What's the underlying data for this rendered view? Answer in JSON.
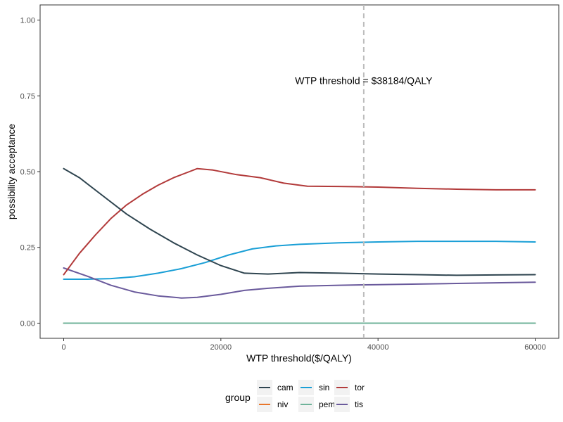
{
  "chart_data": {
    "type": "line",
    "title": "",
    "xlabel": "WTP threshold($/QALY)",
    "ylabel": "possibility acceptance",
    "xlim": [
      -3000,
      63000
    ],
    "ylim": [
      -0.05,
      1.05
    ],
    "x_ticks": [
      0,
      20000,
      40000,
      60000
    ],
    "x_tick_labels": [
      "0",
      "20000",
      "40000",
      "60000"
    ],
    "y_ticks": [
      0,
      0.25,
      0.5,
      0.75,
      1
    ],
    "y_tick_labels": [
      "0.00",
      "0.25",
      "0.50",
      "0.75",
      "1.00"
    ],
    "grid": false,
    "legend": {
      "title": "group",
      "position": "bottom"
    },
    "vline": {
      "x": 38184,
      "style": "dashed",
      "color": "#bdbdbd"
    },
    "annotation": {
      "text": "WTP threshold = $38184/QALY",
      "x": 38184,
      "y": 0.8
    },
    "series": [
      {
        "name": "cam",
        "color": "#2f4550",
        "x": [
          0,
          2000,
          5000,
          8000,
          11000,
          14000,
          17000,
          20000,
          23000,
          26000,
          30000,
          35000,
          40000,
          45000,
          50000,
          55000,
          60000
        ],
        "y": [
          0.51,
          0.48,
          0.42,
          0.36,
          0.31,
          0.265,
          0.225,
          0.19,
          0.165,
          0.162,
          0.167,
          0.165,
          0.162,
          0.16,
          0.158,
          0.159,
          0.16
        ]
      },
      {
        "name": "niv",
        "color": "#e8762b",
        "x": [
          0,
          60000
        ],
        "y": [
          0,
          0
        ]
      },
      {
        "name": "sin",
        "color": "#1a9fd6",
        "x": [
          0,
          3000,
          6000,
          9000,
          12000,
          15000,
          18000,
          21000,
          24000,
          27000,
          30000,
          35000,
          40000,
          45000,
          50000,
          55000,
          60000
        ],
        "y": [
          0.145,
          0.145,
          0.147,
          0.153,
          0.165,
          0.18,
          0.2,
          0.225,
          0.245,
          0.255,
          0.26,
          0.265,
          0.268,
          0.27,
          0.27,
          0.27,
          0.268
        ]
      },
      {
        "name": "pem",
        "color": "#6fb39a",
        "x": [
          0,
          60000
        ],
        "y": [
          0,
          0
        ]
      },
      {
        "name": "tor",
        "color": "#b23a3a",
        "x": [
          0,
          2000,
          4000,
          6000,
          8000,
          10000,
          12000,
          14000,
          16000,
          17000,
          19000,
          22000,
          25000,
          28000,
          31000,
          35000,
          40000,
          45000,
          50000,
          55000,
          60000
        ],
        "y": [
          0.16,
          0.23,
          0.29,
          0.345,
          0.39,
          0.425,
          0.455,
          0.48,
          0.5,
          0.51,
          0.505,
          0.49,
          0.48,
          0.462,
          0.452,
          0.451,
          0.449,
          0.445,
          0.442,
          0.44,
          0.44
        ]
      },
      {
        "name": "tis",
        "color": "#6a5a9c",
        "x": [
          0,
          3000,
          6000,
          9000,
          12000,
          15000,
          17000,
          20000,
          23000,
          26000,
          30000,
          35000,
          40000,
          45000,
          50000,
          55000,
          60000
        ],
        "y": [
          0.182,
          0.155,
          0.125,
          0.103,
          0.09,
          0.083,
          0.085,
          0.095,
          0.108,
          0.115,
          0.122,
          0.125,
          0.127,
          0.129,
          0.131,
          0.133,
          0.135
        ]
      }
    ]
  }
}
